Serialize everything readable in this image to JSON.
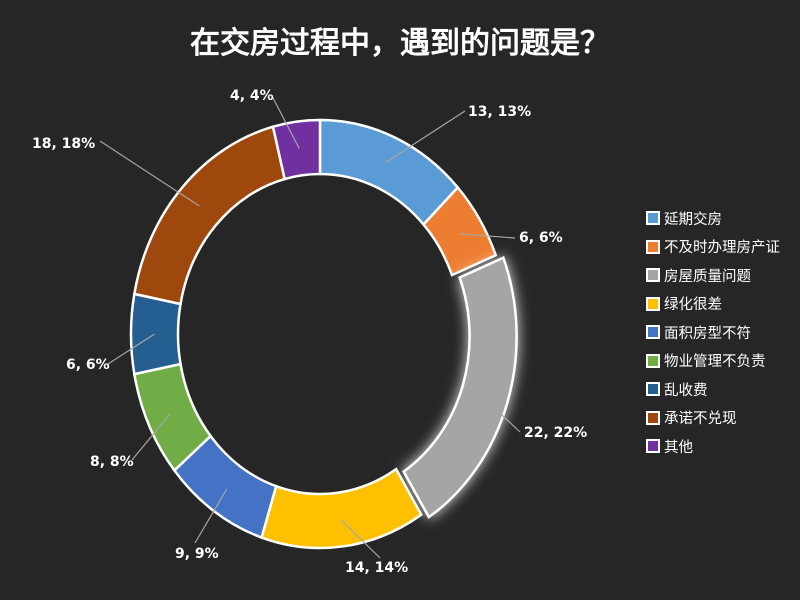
{
  "chart_data": {
    "type": "pie",
    "variant": "donut",
    "title": "在交房过程中，遇到的问题是？",
    "categories": [
      "延期交房",
      "不及时办理房产证",
      "房屋质量问题",
      "绿化很差",
      "面积房型不符",
      "物业管理不负责",
      "乱收费",
      "承诺不兑现",
      "其他"
    ],
    "values": [
      13,
      6,
      22,
      14,
      9,
      8,
      6,
      18,
      4
    ],
    "data_labels": [
      "13, 13%",
      "6, 6%",
      "22, 22%",
      "14, 14%",
      "9, 9%",
      "8, 8%",
      "6, 6%",
      "18, 18%",
      "4, 4%"
    ],
    "colors": [
      "#5B9BD5",
      "#ED7D31",
      "#A5A5A5",
      "#FFC000",
      "#4472C4",
      "#70AD47",
      "#255E91",
      "#9E480E",
      "#7030A0"
    ],
    "highlighted": "房屋质量问题",
    "legend_position": "right"
  },
  "background": "#262626"
}
